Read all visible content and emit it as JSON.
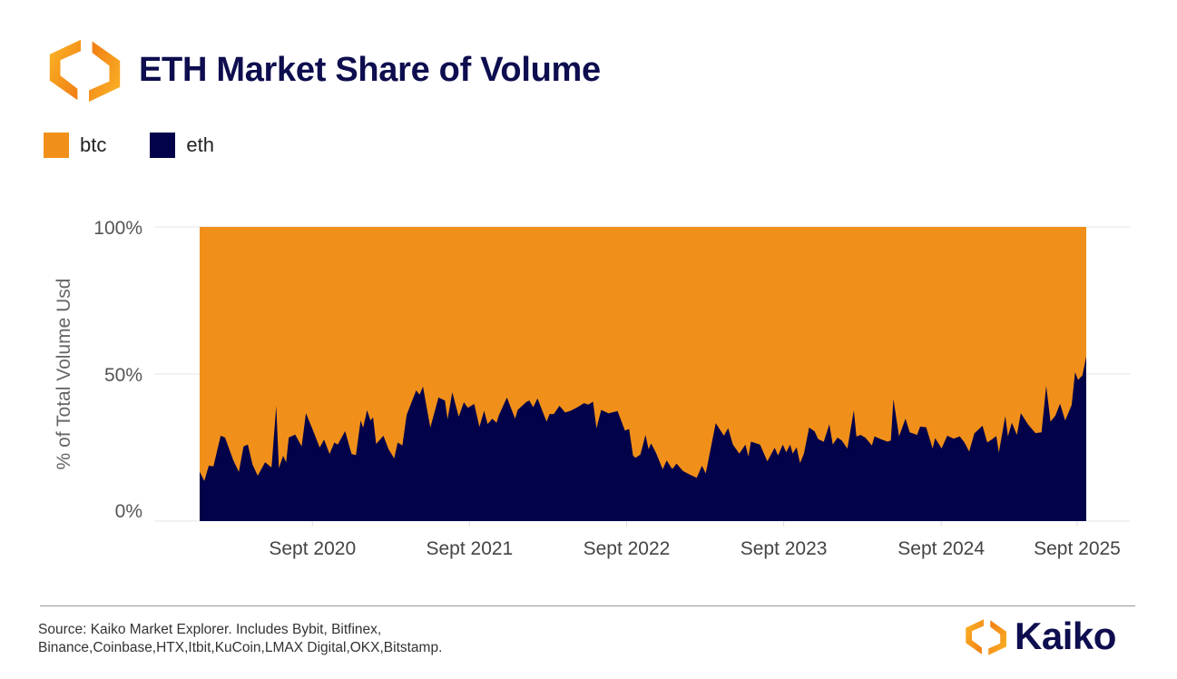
{
  "header": {
    "title": "ETH Market Share of Volume",
    "logo_icon": "kaiko-logo-icon"
  },
  "colors": {
    "btc": "#f0901a",
    "eth": "#02024a",
    "title": "#0d0d4f"
  },
  "footer": {
    "source_line1": "Source: Kaiko Market Explorer. Includes Bybit, Bitfinex,",
    "source_line2": "Binance,Coinbase,HTX,Itbit,KuCoin,LMAX Digital,OKX,Bitstamp.",
    "brand": "Kaiko"
  },
  "chart_data": {
    "type": "area",
    "stacked": true,
    "normalized": true,
    "title": "ETH Market Share of Volume",
    "ylabel": "% of Total Volume Usd",
    "xlabel": "",
    "ylim": [
      0,
      100
    ],
    "yticks": [
      "0%",
      "50%",
      "100%"
    ],
    "ytick_values": [
      0,
      50,
      100
    ],
    "xticks": [
      "Sept 2020",
      "Sept 2021",
      "Sept 2022",
      "Sept 2023",
      "Sept 2024",
      "Sept 2025"
    ],
    "xtick_dates": [
      "2020-09-01",
      "2021-09-01",
      "2022-09-01",
      "2023-09-01",
      "2024-09-01",
      "2025-09-01"
    ],
    "grid": true,
    "legend": "top-left",
    "series_order": [
      "btc",
      "eth"
    ],
    "series_names": {
      "btc": "btc",
      "eth": "eth"
    },
    "dates": [
      "2019-12-14",
      "2019-12-25",
      "2020-01-04",
      "2020-01-15",
      "2020-02-01",
      "2020-02-11",
      "2020-03-01",
      "2020-03-14",
      "2020-03-25",
      "2020-04-04",
      "2020-04-15",
      "2020-04-27",
      "2020-05-14",
      "2020-05-29",
      "2020-06-09",
      "2020-06-15",
      "2020-06-25",
      "2020-07-02",
      "2020-07-08",
      "2020-07-23",
      "2020-08-07",
      "2020-08-17",
      "2020-09-03",
      "2020-09-18",
      "2020-09-28",
      "2020-10-11",
      "2020-10-22",
      "2020-10-30",
      "2020-11-16",
      "2020-12-01",
      "2020-12-11",
      "2020-12-22",
      "2020-12-28",
      "2021-01-06",
      "2021-01-14",
      "2021-01-20",
      "2021-01-27",
      "2021-02-13",
      "2021-02-25",
      "2021-03-10",
      "2021-03-18",
      "2021-03-29",
      "2021-04-08",
      "2021-04-30",
      "2021-05-08",
      "2021-05-16",
      "2021-06-02",
      "2021-06-21",
      "2021-07-06",
      "2021-07-12",
      "2021-07-23",
      "2021-08-07",
      "2021-08-19",
      "2021-08-28",
      "2021-09-12",
      "2021-09-24",
      "2021-10-05",
      "2021-10-13",
      "2021-10-24",
      "2021-11-03",
      "2021-11-08",
      "2021-11-27",
      "2021-12-16",
      "2021-12-22",
      "2022-01-12",
      "2022-01-18",
      "2022-01-27",
      "2022-02-06",
      "2022-02-27",
      "2022-03-06",
      "2022-03-16",
      "2022-03-29",
      "2022-04-11",
      "2022-04-23",
      "2022-05-12",
      "2022-05-25",
      "2022-06-04",
      "2022-06-15",
      "2022-06-23",
      "2022-07-04",
      "2022-07-21",
      "2022-08-11",
      "2022-08-28",
      "2022-09-07",
      "2022-09-16",
      "2022-09-22",
      "2022-10-03",
      "2022-10-15",
      "2022-10-22",
      "2022-10-28",
      "2022-11-08",
      "2022-11-24",
      "2022-12-03",
      "2022-12-16",
      "2022-12-26",
      "2023-01-10",
      "2023-01-27",
      "2023-02-11",
      "2023-02-23",
      "2023-03-04",
      "2023-03-27",
      "2023-04-15",
      "2023-04-25",
      "2023-05-06",
      "2023-05-21",
      "2023-06-04",
      "2023-06-11",
      "2023-06-17",
      "2023-07-08",
      "2023-07-25",
      "2023-08-11",
      "2023-08-19",
      "2023-08-30",
      "2023-09-07",
      "2023-09-16",
      "2023-09-22",
      "2023-10-01",
      "2023-10-09",
      "2023-10-18",
      "2023-10-30",
      "2023-11-12",
      "2023-11-20",
      "2023-12-03",
      "2023-12-16",
      "2023-12-24",
      "2024-01-04",
      "2024-01-14",
      "2024-01-27",
      "2024-02-11",
      "2024-02-17",
      "2024-02-27",
      "2024-03-09",
      "2024-03-24",
      "2024-03-30",
      "2024-04-14",
      "2024-04-29",
      "2024-05-07",
      "2024-05-13",
      "2024-05-26",
      "2024-06-10",
      "2024-06-20",
      "2024-07-07",
      "2024-07-14",
      "2024-07-28",
      "2024-08-12",
      "2024-08-18",
      "2024-09-02",
      "2024-09-15",
      "2024-09-30",
      "2024-10-14",
      "2024-10-25",
      "2024-11-05",
      "2024-11-17",
      "2024-12-06",
      "2024-12-17",
      "2024-12-27",
      "2025-01-07",
      "2025-01-13",
      "2025-01-28",
      "2025-02-03",
      "2025-02-12",
      "2025-02-24",
      "2025-03-05",
      "2025-03-22",
      "2025-04-08",
      "2025-04-22",
      "2025-05-03",
      "2025-05-13",
      "2025-05-24",
      "2025-06-04",
      "2025-06-16",
      "2025-07-01",
      "2025-07-09",
      "2025-07-16",
      "2025-07-26",
      "2025-08-04"
    ],
    "eth": [
      16.7,
      13.6,
      18.8,
      18.6,
      29,
      28.4,
      20.7,
      16.7,
      25.4,
      26,
      19.2,
      15.4,
      20,
      18.2,
      39.2,
      18,
      22.2,
      20,
      28.4,
      29.4,
      25.4,
      36.7,
      30.6,
      25,
      27.7,
      22.8,
      26.7,
      26,
      30.6,
      22.8,
      22.4,
      34.2,
      31.7,
      37.7,
      34.2,
      35.3,
      26.2,
      29,
      24.4,
      21.3,
      26.7,
      25.7,
      36.1,
      44.4,
      43,
      45.7,
      31.8,
      42,
      41,
      34.6,
      43.8,
      35.5,
      40.4,
      38.5,
      39.8,
      32,
      37.5,
      33,
      34.8,
      33.4,
      35.9,
      42,
      34.8,
      37.8,
      40.6,
      41,
      38.7,
      41.7,
      33.8,
      36.4,
      36.4,
      39.2,
      36.9,
      37.4,
      38.9,
      40.1,
      39.6,
      40.6,
      31.5,
      37.8,
      36.6,
      37.4,
      30.8,
      31.3,
      22.2,
      21.5,
      22.6,
      29.3,
      24.4,
      26.4,
      23.3,
      17.6,
      20.6,
      17.7,
      19.5,
      17,
      15.7,
      14.7,
      18.8,
      16.2,
      33.3,
      29,
      31.6,
      26,
      22.9,
      26,
      21.9,
      27,
      26,
      20.3,
      24.9,
      22.3,
      26,
      23.4,
      26,
      22.9,
      25.1,
      19.7,
      22.9,
      31.8,
      30.5,
      27.9,
      26.9,
      32.9,
      26,
      28.4,
      27.4,
      24.6,
      37.7,
      28.8,
      29.3,
      28.3,
      25.7,
      28.8,
      27.8,
      27,
      27.4,
      41.5,
      28.8,
      34.8,
      30.2,
      29.3,
      32.1,
      31.9,
      24.7,
      28.2,
      24.7,
      29,
      28,
      28.8,
      26.7,
      23.6,
      29.8,
      32.4,
      26.7,
      27.7,
      28.9,
      23.3,
      35.7,
      28.8,
      33.4,
      29.3,
      36.7,
      32.8,
      29.9,
      30.2,
      46,
      33.8,
      35.8,
      39.9,
      34.2,
      39.4,
      50.6,
      48,
      49.5,
      55.9
    ]
  }
}
